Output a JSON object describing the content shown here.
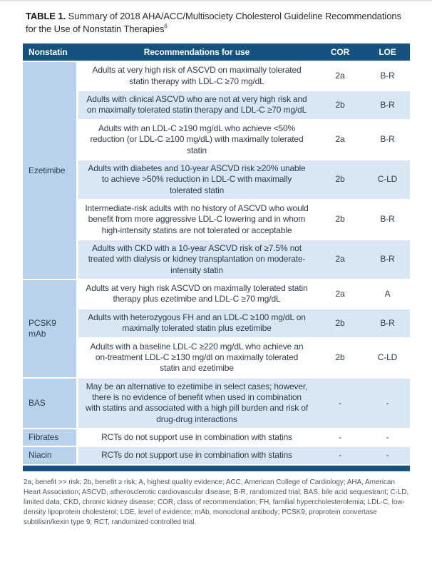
{
  "title": {
    "label": "TABLE 1.",
    "text": "Summary of 2018 AHA/ACC/Multisociety Cholesterol Guideline Recommendations for the Use of Nonstatin Therapies",
    "superscript": "6"
  },
  "table": {
    "headers": [
      "Nonstatin",
      "Recommendations for use",
      "COR",
      "LOE"
    ],
    "groups": [
      {
        "nonstatin": "Ezetimibe",
        "rows": [
          {
            "recommendation": "Adults at very high risk of ASCVD on maximally tolerated statin therapy with LDL-C ≥70 mg/dL",
            "cor": "2a",
            "loe": "B-R"
          },
          {
            "recommendation": "Adults with clinical ASCVD who are not at very high risk and on maximally tolerated statin therapy and LDL-C ≥70 mg/dL",
            "cor": "2b",
            "loe": "B-R"
          },
          {
            "recommendation": "Adults with an LDL-C ≥190 mg/dL who achieve <50% reduction (or LDL-C ≥100 mg/dL) with maximally tolerated statin",
            "cor": "2a",
            "loe": "B-R"
          },
          {
            "recommendation": "Adults with diabetes and 10-year ASCVD risk ≥20% unable to achieve >50% reduction in LDL-C with maximally tolerated statin",
            "cor": "2b",
            "loe": "C-LD"
          },
          {
            "recommendation": "Intermediate-risk adults with no history of ASCVD who would benefit from more aggressive LDL-C lowering and in whom high-intensity statins are not tolerated or acceptable",
            "cor": "2b",
            "loe": "B-R"
          },
          {
            "recommendation": "Adults with CKD with a 10-year ASCVD risk of ≥7.5% not treated with dialysis or kidney transplantation on moderate-intensity statin",
            "cor": "2a",
            "loe": "B-R"
          }
        ]
      },
      {
        "nonstatin": "PCSK9 mAb",
        "rows": [
          {
            "recommendation": "Adults at very high risk ASCVD on maximally tolerated statin therapy plus ezetimibe and LDL-C ≥70 mg/dL",
            "cor": "2a",
            "loe": "A"
          },
          {
            "recommendation": "Adults with heterozygous FH and an LDL-C ≥100 mg/dL on maximally tolerated statin plus ezetimibe",
            "cor": "2b",
            "loe": "B-R"
          },
          {
            "recommendation": "Adults with a baseline LDL-C ≥220 mg/dL who achieve an on-treatment LDL-C ≥130 mg/dl on maximally tolerated statin and ezetimibe",
            "cor": "2b",
            "loe": "C-LD"
          }
        ]
      },
      {
        "nonstatin": "BAS",
        "rows": [
          {
            "recommendation": "May be an alternative to ezetimibe in select cases; however, there is no evidence of benefit when used in combination with statins and associated with a high pill burden and risk of drug-drug interactions",
            "cor": "-",
            "loe": "-"
          }
        ]
      },
      {
        "nonstatin": "Fibrates",
        "rows": [
          {
            "recommendation": "RCTs do not support use in combination with statins",
            "cor": "-",
            "loe": "-"
          }
        ]
      },
      {
        "nonstatin": "Niacin",
        "rows": [
          {
            "recommendation": "RCTs do not support use in combination with statins",
            "cor": "-",
            "loe": "-"
          }
        ]
      }
    ]
  },
  "footnote": "2a, benefit >> risk; 2b, benefit ≥ risk; A, highest quality evidence; ACC, American College of Cardiology; AHA, American Heart Association; ASCVD, atherosclerotic cardiovascular disease; B-R, randomized trial; BAS, bile acid sequestrant; C-LD, limited data; CKD, chronic kidney disease; COR, class of recommendation; FH, familial hypercholesterolemia; LDL-C, low-density lipoprotein cholesterol; LOE, level of evidence; mAb, monoclonal antibody; PCSK9, proprotein convertase subtilisin/kexin type 9; RCT, randomized controlled trial.",
  "colors": {
    "header_navy": "#15527f",
    "group_column_blue": "#b9d3ec",
    "stripe_blue": "#d9e6f4",
    "cell_text": "#2e3d4d",
    "footnote_text": "#4c5963"
  }
}
